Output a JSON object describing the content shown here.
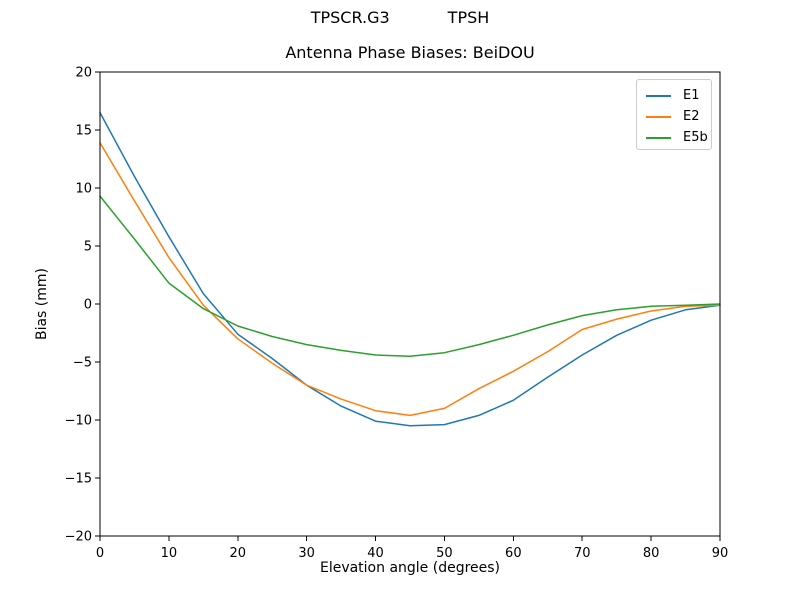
{
  "figure": {
    "suptitle_left": "TPSCR.G3",
    "suptitle_right": "TPSH"
  },
  "chart_data": {
    "type": "line",
    "title": "Antenna Phase Biases: BeiDOU",
    "xlabel": "Elevation angle (degrees)",
    "ylabel": "Bias (mm)",
    "xlim": [
      0,
      90
    ],
    "ylim": [
      -20,
      20
    ],
    "grid": false,
    "legend_position": "upper right",
    "xticks": [
      0,
      10,
      20,
      30,
      40,
      50,
      60,
      70,
      80,
      90
    ],
    "xtick_labels": [
      "0",
      "10",
      "20",
      "30",
      "40",
      "50",
      "60",
      "70",
      "80",
      "90"
    ],
    "yticks": [
      -20,
      -15,
      -10,
      -5,
      0,
      5,
      10,
      15,
      20
    ],
    "ytick_labels": [
      "−20",
      "−15",
      "−10",
      "−5",
      "0",
      "5",
      "10",
      "15",
      "20"
    ],
    "x": [
      0,
      5,
      10,
      15,
      20,
      25,
      30,
      35,
      40,
      45,
      50,
      55,
      60,
      65,
      70,
      75,
      80,
      85,
      90
    ],
    "series": [
      {
        "name": "E1",
        "color": "#1f77b4",
        "values": [
          16.5,
          11.0,
          5.8,
          0.9,
          -2.6,
          -4.7,
          -7.0,
          -8.8,
          -10.1,
          -10.5,
          -10.4,
          -9.6,
          -8.3,
          -6.3,
          -4.4,
          -2.7,
          -1.4,
          -0.5,
          -0.1
        ]
      },
      {
        "name": "E2",
        "color": "#ff7f0e",
        "values": [
          13.9,
          8.9,
          4.0,
          -0.1,
          -3.0,
          -5.1,
          -7.0,
          -8.2,
          -9.2,
          -9.6,
          -9.0,
          -7.3,
          -5.8,
          -4.1,
          -2.2,
          -1.3,
          -0.6,
          -0.2,
          -0.1
        ]
      },
      {
        "name": "E5b",
        "color": "#2ca02c",
        "values": [
          9.3,
          5.6,
          1.8,
          -0.4,
          -1.9,
          -2.8,
          -3.5,
          -4.0,
          -4.4,
          -4.5,
          -4.2,
          -3.5,
          -2.7,
          -1.8,
          -1.0,
          -0.5,
          -0.2,
          -0.1,
          0.0
        ]
      }
    ]
  }
}
